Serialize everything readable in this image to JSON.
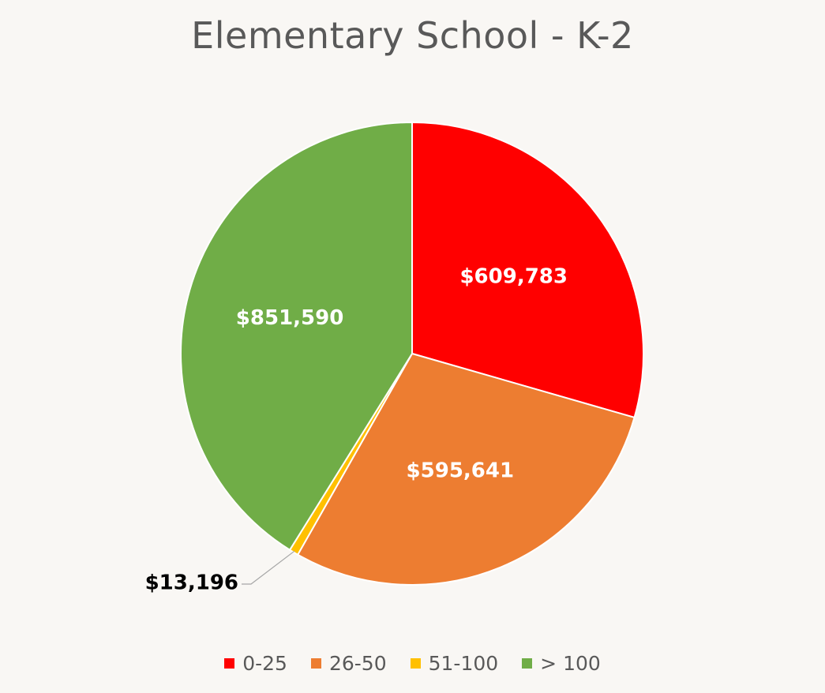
{
  "chart_data": {
    "type": "pie",
    "title": "Elementary School - K-2",
    "categories": [
      "0-25",
      "26-50",
      "51-100",
      "> 100"
    ],
    "values": [
      609783,
      595641,
      13196,
      851590
    ],
    "labels": [
      "$609,783",
      "$595,641",
      "$13,196",
      "$851,590"
    ],
    "colors": [
      "#ff0000",
      "#ed7d31",
      "#ffc000",
      "#70ad47"
    ],
    "label_colors": [
      "#ffffff",
      "#ffffff",
      "#000000",
      "#ffffff"
    ],
    "start_angle_deg": 0,
    "direction": "clockwise",
    "legend_position": "bottom"
  }
}
